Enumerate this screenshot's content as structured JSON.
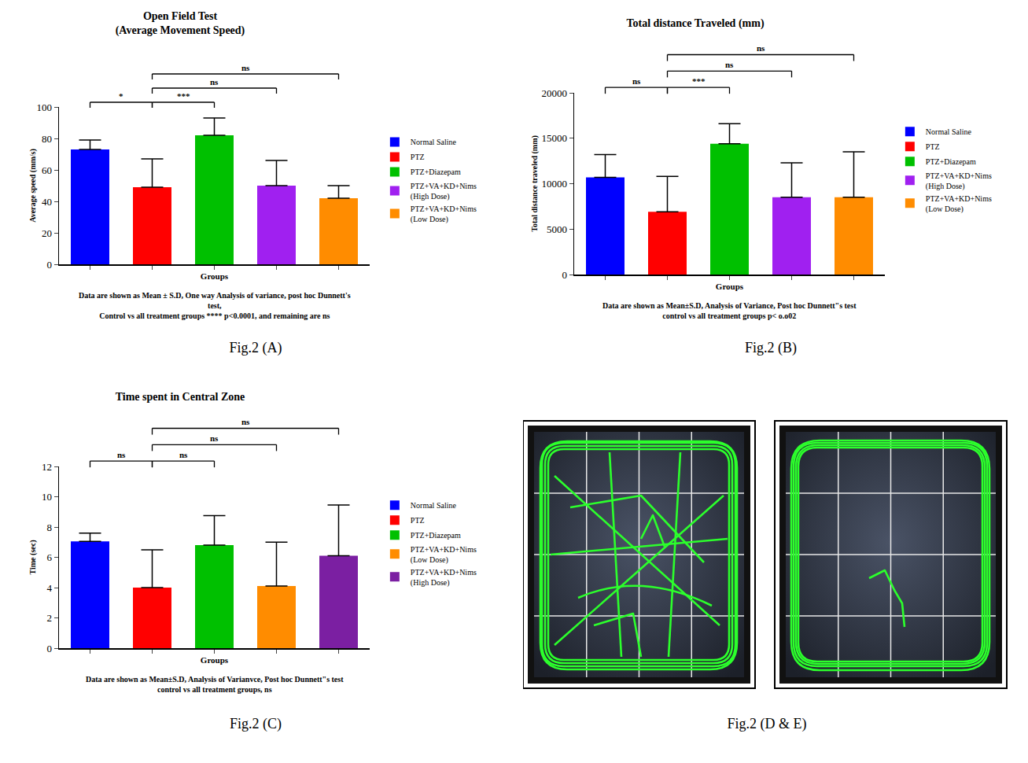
{
  "chart_data": [
    {
      "type": "bar",
      "title": "Open Field Test",
      "subtitle": "(Average Movement Speed)",
      "x_label": "Groups",
      "y_label": "Average speed (mm/s)",
      "categories": [
        "Normal Saline",
        "PTZ",
        "PTZ+Diazepam",
        "PTZ+VA+KD+Nims (High Dose)",
        "PTZ+VA+KD+Nims (Low Dose)"
      ],
      "values": [
        73,
        49,
        82,
        50,
        42
      ],
      "sd": [
        6,
        18,
        11,
        16,
        8
      ],
      "colors": [
        "#0000ff",
        "#ff0000",
        "#00c000",
        "#a020f0",
        "#ff8c00"
      ],
      "ylim": [
        0,
        100
      ],
      "yticks": [
        0,
        20,
        40,
        60,
        80,
        100
      ],
      "grid": false,
      "legend": "right",
      "tick_labels": "y",
      "comparisons": [
        {
          "from": "Normal Saline",
          "to": "PTZ",
          "label": "*"
        },
        {
          "from": "PTZ",
          "to": "PTZ+Diazepam",
          "label": "***"
        },
        {
          "from": "PTZ",
          "to": "PTZ+VA+KD+Nims (High Dose)",
          "label": "ns"
        },
        {
          "from": "PTZ",
          "to": "PTZ+VA+KD+Nims (Low Dose)",
          "label": "ns"
        }
      ],
      "notes": [
        "Data are shown as Mean ± S.D, One way Analysis of variance, post hoc Dunnett's",
        "test,",
        "Control vs all treatment groups **** p<0.0001, and remaining are ns"
      ],
      "caption": "Fig.2 (A)"
    },
    {
      "type": "bar",
      "title": "Total distance Traveled (mm)",
      "x_label": "Groups",
      "y_label": "Total distance traveled (mm)",
      "categories": [
        "Normal Saline",
        "PTZ",
        "PTZ+Diazepam",
        "PTZ+VA+KD+Nims (High Dose)",
        "PTZ+VA+KD+Nims (Low Dose)"
      ],
      "values": [
        10700,
        6900,
        14400,
        8500,
        8500
      ],
      "sd": [
        2500,
        3900,
        2200,
        3800,
        5000
      ],
      "colors": [
        "#0000ff",
        "#ff0000",
        "#00c000",
        "#a020f0",
        "#ff8c00"
      ],
      "ylim": [
        0,
        20000
      ],
      "yticks": [
        0,
        5000,
        10000,
        15000,
        20000
      ],
      "grid": false,
      "legend": "right",
      "tick_labels": "y",
      "comparisons": [
        {
          "from": "Normal Saline",
          "to": "PTZ",
          "label": "ns"
        },
        {
          "from": "PTZ",
          "to": "PTZ+Diazepam",
          "label": "***"
        },
        {
          "from": "PTZ",
          "to": "PTZ+VA+KD+Nims (High Dose)",
          "label": "ns"
        },
        {
          "from": "PTZ",
          "to": "PTZ+VA+KD+Nims (Low Dose)",
          "label": "ns"
        }
      ],
      "notes": [
        "Data are shown as Mean±S.D, Analysis of Variance, Post hoc Dunnett\"s test",
        "control vs all treatment groups p< o.o02"
      ],
      "caption": "Fig.2 (B)"
    },
    {
      "type": "bar",
      "title": "Time spent in Central Zone",
      "x_label": "Groups",
      "y_label": "Time (sec)",
      "categories": [
        "Normal Saline",
        "PTZ",
        "PTZ+Diazepam",
        "PTZ+VA+KD+Nims (Low Dose)",
        "PTZ+VA+KD+Nims (High Dose)"
      ],
      "values": [
        7.05,
        4.0,
        6.8,
        4.1,
        6.1
      ],
      "sd": [
        0.55,
        2.5,
        1.95,
        2.9,
        3.35
      ],
      "colors": [
        "#0000ff",
        "#ff0000",
        "#00c000",
        "#ff8c00",
        "#7b1fa2"
      ],
      "ylim": [
        0,
        12
      ],
      "yticks": [
        0,
        2,
        4,
        6,
        8,
        10,
        12
      ],
      "grid": false,
      "legend": "right",
      "tick_labels": "y",
      "comparisons": [
        {
          "from": "Normal Saline",
          "to": "PTZ",
          "label": "ns"
        },
        {
          "from": "PTZ",
          "to": "PTZ+Diazepam",
          "label": "ns"
        },
        {
          "from": "PTZ",
          "to": "PTZ+VA+KD+Nims (Low Dose)",
          "label": "ns"
        },
        {
          "from": "PTZ",
          "to": "PTZ+VA+KD+Nims (High Dose)",
          "label": "ns"
        }
      ],
      "notes": [
        "Data are shown as Mean±S.D, Analysis of Varianvce, Post hoc Dunnett\"s test",
        "control vs all treatment groups, ns"
      ],
      "caption": "Fig.2 (C)"
    }
  ],
  "images": {
    "caption": "Fig.2 (D & E)"
  }
}
